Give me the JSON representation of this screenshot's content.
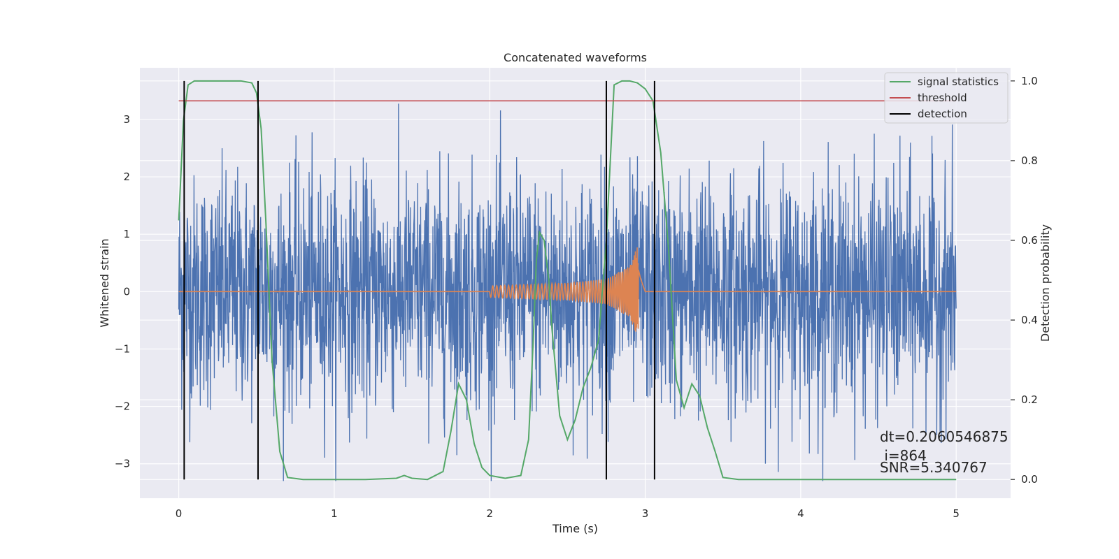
{
  "chart_data": {
    "type": "line",
    "title": "Concatenated waveforms",
    "xlabel": "Time (s)",
    "ylabel_left": "Whitened strain",
    "ylabel_right": "Detection probability",
    "xlim": [
      -0.25,
      5.35
    ],
    "ylim_left": [
      -3.6,
      3.9
    ],
    "ylim_right": [
      -0.047,
      1.033
    ],
    "x_ticks": [
      0,
      1,
      2,
      3,
      4,
      5
    ],
    "x_tick_labels": [
      "0",
      "1",
      "2",
      "3",
      "4",
      "5"
    ],
    "y_left_ticks": [
      -3,
      -2,
      -1,
      0,
      1,
      2,
      3
    ],
    "y_left_tick_labels": [
      "−3",
      "−2",
      "−1",
      "0",
      "1",
      "2",
      "3"
    ],
    "y_right_ticks": [
      0.0,
      0.2,
      0.4,
      0.6,
      0.8,
      1.0
    ],
    "y_right_tick_labels": [
      "0.0",
      "0.2",
      "0.4",
      "0.6",
      "0.8",
      "1.0"
    ],
    "grid": true,
    "legend_position": "top-right",
    "colors": {
      "background": "#eaeaf2",
      "grid": "#ffffff",
      "strain": "#4c72b0",
      "injected": "#dd8452",
      "signal_statistics": "#55a868",
      "threshold": "#c44e52",
      "detection": "#000000"
    },
    "series": [
      {
        "name": "signal statistics",
        "axis": "right",
        "x": [
          0.0,
          0.03,
          0.06,
          0.1,
          0.2,
          0.3,
          0.4,
          0.47,
          0.5,
          0.53,
          0.56,
          0.6,
          0.65,
          0.7,
          0.8,
          1.0,
          1.2,
          1.4,
          1.45,
          1.5,
          1.6,
          1.7,
          1.75,
          1.8,
          1.85,
          1.9,
          1.95,
          2.0,
          2.1,
          2.2,
          2.25,
          2.28,
          2.3,
          2.32,
          2.35,
          2.38,
          2.4,
          2.45,
          2.5,
          2.55,
          2.6,
          2.65,
          2.7,
          2.75,
          2.8,
          2.85,
          2.9,
          2.95,
          3.0,
          3.05,
          3.1,
          3.15,
          3.2,
          3.25,
          3.3,
          3.35,
          3.4,
          3.45,
          3.5,
          3.6,
          3.8,
          4.0,
          4.5,
          5.0
        ],
        "y": [
          0.65,
          0.9,
          0.99,
          1.0,
          1.0,
          1.0,
          1.0,
          0.995,
          0.97,
          0.88,
          0.65,
          0.3,
          0.07,
          0.005,
          0.0,
          0.0,
          0.0,
          0.003,
          0.01,
          0.003,
          0.0,
          0.02,
          0.12,
          0.24,
          0.2,
          0.09,
          0.03,
          0.01,
          0.003,
          0.01,
          0.1,
          0.35,
          0.55,
          0.62,
          0.6,
          0.5,
          0.38,
          0.16,
          0.1,
          0.15,
          0.23,
          0.28,
          0.35,
          0.6,
          0.99,
          1.0,
          1.0,
          0.995,
          0.98,
          0.95,
          0.82,
          0.58,
          0.25,
          0.18,
          0.24,
          0.21,
          0.13,
          0.07,
          0.005,
          0.0,
          0.0,
          0.0,
          0.0,
          0.0
        ]
      },
      {
        "name": "threshold",
        "axis": "right",
        "x": [
          0.0,
          5.0
        ],
        "y": [
          0.95,
          0.95
        ]
      },
      {
        "name": "detection",
        "axis": "right",
        "x": [
          0.035,
          0.51,
          2.75,
          3.06
        ],
        "y_range": [
          0.0,
          1.0
        ]
      },
      {
        "name": "",
        "axis": "left",
        "description": "whitened strain noise",
        "x_range": [
          0.0,
          5.0
        ],
        "y_approx_range": [
          -3.3,
          3.6
        ]
      },
      {
        "name": "",
        "axis": "left",
        "description": "injected chirp",
        "x": [
          0.0,
          2.0,
          2.5,
          2.75,
          2.9,
          2.95,
          2.97,
          3.0,
          5.0
        ],
        "y_amplitude": [
          0.0,
          0.1,
          0.15,
          0.22,
          0.45,
          0.8,
          0.4,
          0.0,
          0.0
        ]
      }
    ],
    "annotation": {
      "line1": "dt=0.2060546875",
      "line2": " i=864",
      "line3": "SNR=5.340767"
    }
  }
}
